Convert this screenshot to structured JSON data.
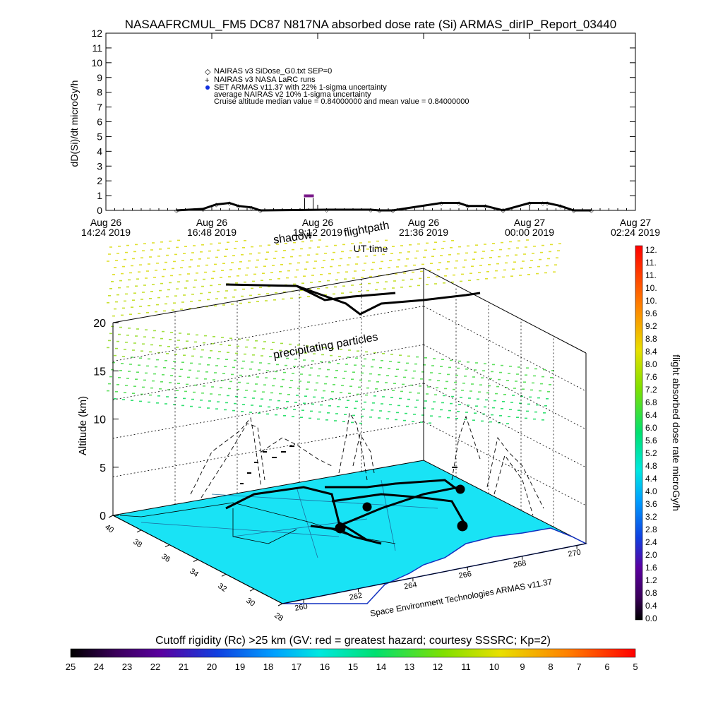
{
  "title": "NASAAFRCMUL_FM5 DC87 N817NA absorbed dose rate (Si) ARMAS_dirIP_Report_03440",
  "top_plot": {
    "ylabel": "dD(Si)/dt microGy/h",
    "xlabel": "UT time",
    "yticks": [
      "0",
      "1",
      "2",
      "3",
      "4",
      "5",
      "6",
      "7",
      "8",
      "9",
      "10",
      "11",
      "12"
    ],
    "xticks": [
      {
        "line1": "Aug 26",
        "line2": "14:24 2019"
      },
      {
        "line1": "Aug 26",
        "line2": "16:48 2019"
      },
      {
        "line1": "Aug 26",
        "line2": "19:12 2019"
      },
      {
        "line1": "Aug 26",
        "line2": "21:36 2019"
      },
      {
        "line1": "Aug 27",
        "line2": "00:00 2019"
      },
      {
        "line1": "Aug 27",
        "line2": "02:24 2019"
      }
    ],
    "legend": [
      "NAIRAS v3 SiDose_G0.txt SEP=0",
      "NAIRAS v3 NASA LaRC runs",
      "SET ARMAS v11.37 with 22% 1-sigma uncertainty",
      "average NAIRAS v2 10% 1-sigma uncertainty",
      "Cruise altitude median value = 0.84000000 and mean value = 0.84000000"
    ]
  },
  "scene_3d": {
    "ylabel": "Altitude (km)",
    "altitude_ticks": [
      "0",
      "5",
      "10",
      "15",
      "20"
    ],
    "lat_ticks": [
      "40",
      "38",
      "36",
      "34",
      "32",
      "30",
      "28"
    ],
    "lon_ticks": [
      "260",
      "262",
      "264",
      "266",
      "268",
      "270"
    ],
    "labels": {
      "shadow": "shadow",
      "flightpath": "flightpath",
      "precipitating": "precipitating particles",
      "credit": "Space Environment Technologies ARMAS v11.37"
    }
  },
  "right_colorbar": {
    "label": "flight absorbed dose rate microGy/h",
    "ticks": [
      "12.",
      "11.",
      "11.",
      "10.",
      "10.",
      "9.6",
      "9.2",
      "8.8",
      "8.4",
      "8.0",
      "7.6",
      "7.2",
      "6.8",
      "6.4",
      "6.0",
      "5.6",
      "5.2",
      "4.8",
      "4.4",
      "4.0",
      "3.6",
      "3.2",
      "2.8",
      "2.4",
      "2.0",
      "1.6",
      "1.2",
      "0.8",
      "0.4",
      "0.0"
    ]
  },
  "bottom_colorbar": {
    "label": "Cutoff rigidity (Rc) >25 km (GV: red = greatest hazard; courtesy SSSRC; Kp=2)",
    "ticks": [
      "25",
      "24",
      "23",
      "22",
      "21",
      "20",
      "19",
      "18",
      "17",
      "16",
      "15",
      "14",
      "13",
      "12",
      "11",
      "10",
      "9",
      "8",
      "7",
      "6",
      "5"
    ]
  },
  "chart_data": {
    "type": "line",
    "title": "NASAAFRCMUL_FM5 DC87 N817NA absorbed dose rate (Si) ARMAS_dirIP_Report_03440",
    "xlabel": "UT time",
    "ylabel": "dD(Si)/dt microGy/h",
    "ylim": [
      0,
      12
    ],
    "xlim_hours_since_aug26_1424": [
      0,
      12
    ],
    "series": [
      {
        "name": "NAIRAS v3 SiDose_G0.txt SEP=0",
        "x": [
          1.6,
          2.2,
          2.5,
          2.8,
          3.0,
          3.3,
          3.5,
          5.0,
          6.0,
          6.2,
          6.5,
          7.6,
          8.0,
          8.2,
          8.6,
          9.0,
          9.6,
          9.9,
          10.0,
          10.3,
          10.6,
          11.0
        ],
        "y": [
          0.0,
          0.1,
          0.4,
          0.5,
          0.3,
          0.2,
          0.0,
          0.05,
          0.05,
          0.0,
          0.0,
          0.5,
          0.5,
          0.3,
          0.3,
          0.0,
          0.5,
          0.5,
          0.5,
          0.3,
          0.0,
          0.0
        ]
      },
      {
        "name": "SET ARMAS v11.37 with 22% 1-sigma uncertainty",
        "x": [
          4.6
        ],
        "y": [
          0.84
        ]
      }
    ]
  }
}
